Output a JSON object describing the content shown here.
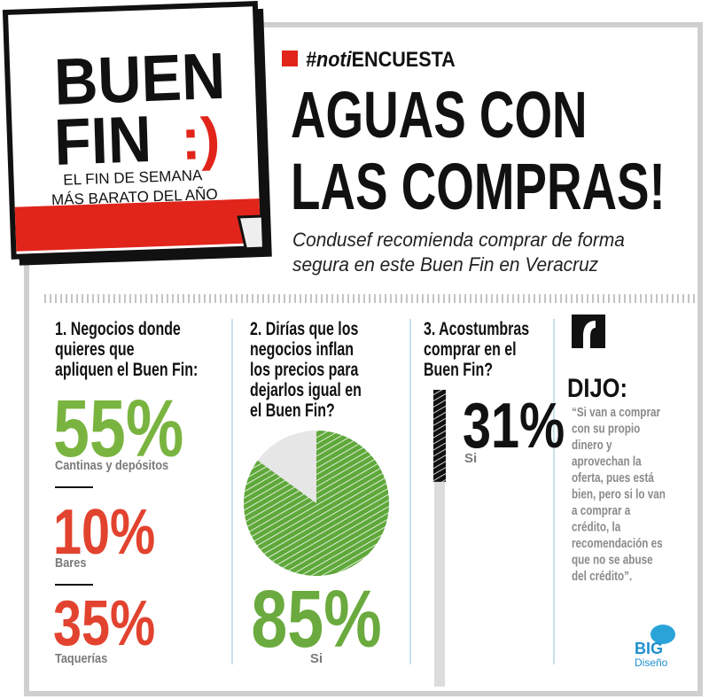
{
  "logo": {
    "line1": "BUEN",
    "line2": "FIN",
    "smile": ":)",
    "tagline1": "EL FIN DE SEMANA",
    "tagline2": "MÁS BARATO DEL AÑO"
  },
  "header": {
    "hashtag_prefix": "#noti",
    "hashtag_suffix": "ENCUESTA",
    "title_line1": "AGUAS CON",
    "title_line2": "LAS COMPRAS!",
    "subtitle_line1": "Condusef recomienda comprar de forma",
    "subtitle_line2": "segura en este Buen Fin en Veracruz"
  },
  "survey": [
    {
      "question": [
        "1. Negocios donde",
        "quieres que",
        "apliquen el Buen Fin:"
      ],
      "items": [
        {
          "value": 55,
          "label": "55%",
          "caption": "Cantinas y depósitos",
          "color": "#7ab440"
        },
        {
          "value": 10,
          "label": "10%",
          "caption": "Bares",
          "color": "#e2432f"
        },
        {
          "value": 35,
          "label": "35%",
          "caption": "Taquerías",
          "color": "#e2432f"
        }
      ]
    },
    {
      "question": [
        "2. Dirías que los",
        "negocios inflan",
        "los precios para",
        "dejarlos igual en",
        "el Buen Fin?"
      ],
      "value": 85,
      "label": "85%",
      "caption": "Si",
      "color": "#6aaa3e"
    },
    {
      "question": [
        "3. Acostumbras",
        "comprar en el",
        "Buen Fin?"
      ],
      "value": 31,
      "label": "31%",
      "caption": "Si",
      "color": "#111111"
    }
  ],
  "quote": {
    "heading": "DIJO:",
    "lines": [
      "“Si van a comprar",
      "con su propio",
      "dinero y",
      "aprovechan la",
      "oferta, pues está",
      "bien, pero si lo van",
      "a comprar a",
      "crédito, la",
      "recomendación es",
      "que no se abuse",
      "del crédito”."
    ]
  },
  "credit": {
    "brand": "BIG",
    "sub": "Diseño"
  }
}
